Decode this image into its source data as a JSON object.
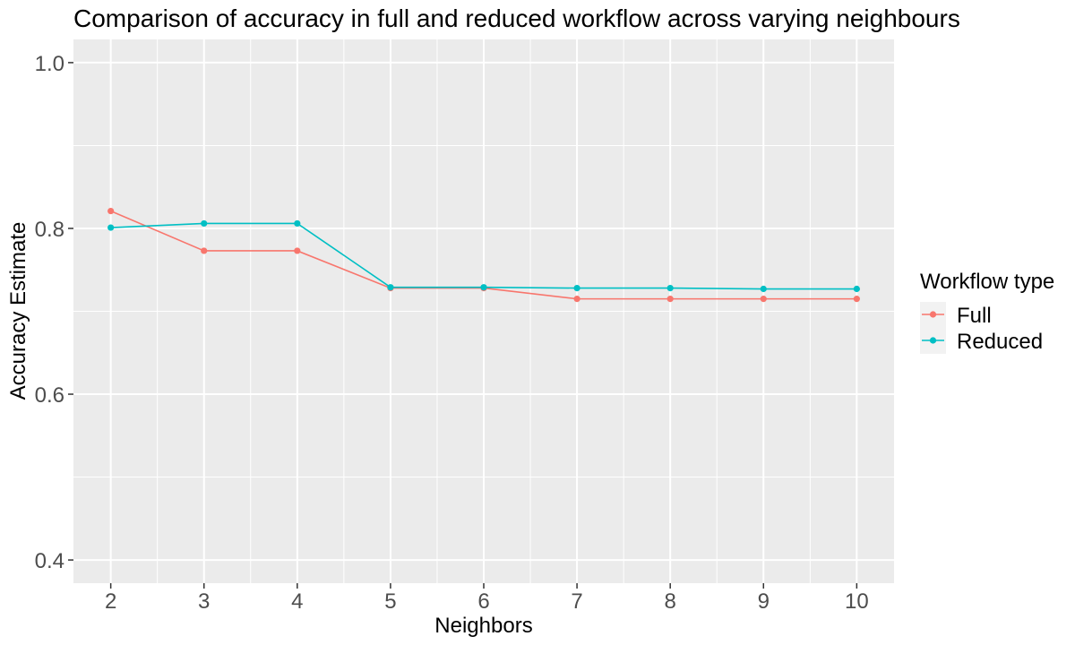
{
  "chart_data": {
    "type": "line",
    "title": "Comparison of accuracy in full and reduced workflow across varying neighbours",
    "xlabel": "Neighbors",
    "ylabel": "Accuracy Estimate",
    "x": [
      2,
      3,
      4,
      5,
      6,
      7,
      8,
      9,
      10
    ],
    "xlim": [
      1.6,
      10.4
    ],
    "ylim": [
      0.372,
      1.028
    ],
    "yticks": [
      "0.4",
      "0.6",
      "0.8",
      "1.0"
    ],
    "ytick_values": [
      0.4,
      0.6,
      0.8,
      1.0
    ],
    "xticks": [
      "2",
      "3",
      "4",
      "5",
      "6",
      "7",
      "8",
      "9",
      "10"
    ],
    "grid": true,
    "legend": {
      "title": "Workflow type",
      "placement": "right"
    },
    "series": [
      {
        "name": "Full",
        "color": "#F8766D",
        "values": [
          0.821,
          0.773,
          0.773,
          0.728,
          0.728,
          0.715,
          0.715,
          0.715,
          0.715
        ]
      },
      {
        "name": "Reduced",
        "color": "#00BFC4",
        "values": [
          0.801,
          0.806,
          0.806,
          0.729,
          0.729,
          0.728,
          0.728,
          0.727,
          0.727
        ]
      }
    ]
  }
}
